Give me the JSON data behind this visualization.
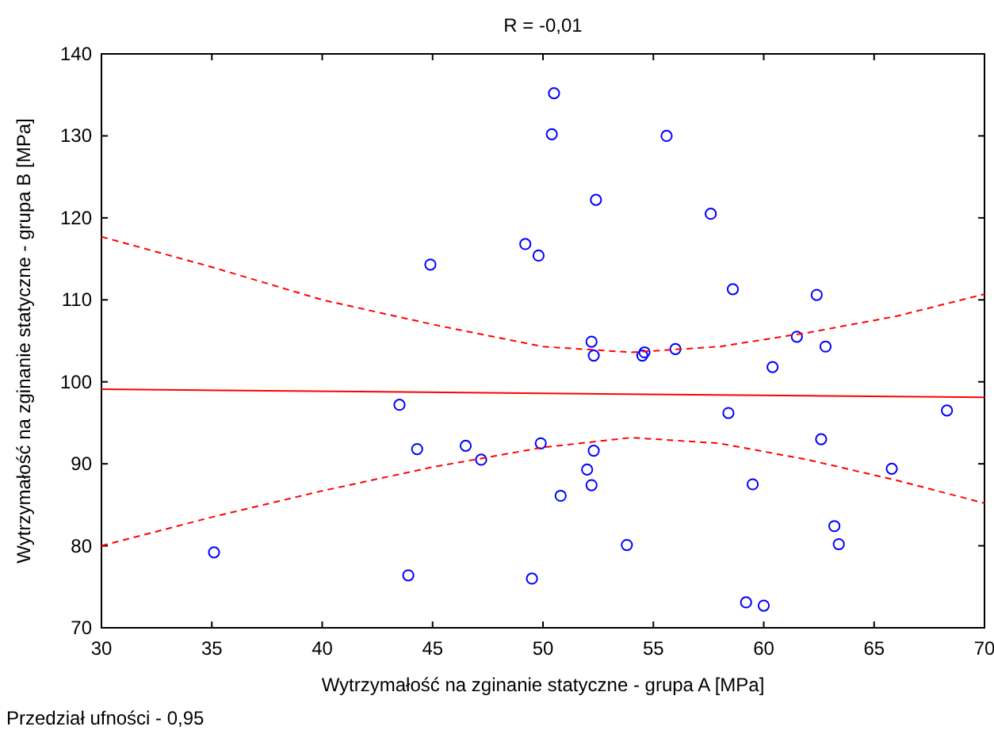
{
  "chart_data": {
    "type": "scatter",
    "title": "R = -0,01",
    "xlabel": "Wytrzymałość na zginanie statyczne - grupa A [MPa]",
    "ylabel": "Wytrzymałość na zginanie statyczne - grupa B [MPa]",
    "annotations": [
      "Przedział ufności - 0,95"
    ],
    "xlim": [
      30,
      70
    ],
    "xticks": [
      30,
      35,
      40,
      45,
      50,
      55,
      60,
      65,
      70
    ],
    "ylim": [
      70,
      140
    ],
    "yticks": [
      70,
      80,
      90,
      100,
      110,
      120,
      130,
      140
    ],
    "grid": false,
    "series": [
      {
        "color": "#0000ff",
        "marker": "circle",
        "x": [
          35.1,
          43.5,
          43.9,
          44.3,
          44.9,
          46.5,
          47.2,
          49.2,
          49.5,
          49.8,
          49.9,
          50.4,
          50.5,
          50.8,
          52.0,
          52.2,
          52.2,
          52.3,
          52.3,
          52.4,
          53.8,
          54.5,
          54.6,
          55.6,
          56.0,
          57.6,
          58.4,
          58.6,
          59.2,
          59.5,
          60.0,
          60.4,
          61.5,
          62.4,
          62.6,
          62.8,
          63.2,
          63.4,
          65.8,
          68.3
        ],
        "values": [
          79.2,
          97.2,
          76.4,
          91.8,
          114.3,
          92.2,
          90.5,
          116.8,
          76.0,
          115.4,
          92.5,
          130.2,
          135.2,
          86.1,
          89.3,
          87.4,
          104.9,
          103.2,
          91.6,
          122.2,
          80.1,
          103.2,
          103.6,
          130.0,
          104.0,
          120.5,
          96.2,
          111.3,
          73.1,
          87.5,
          72.7,
          101.8,
          105.5,
          110.6,
          93.0,
          104.3,
          82.4,
          80.2,
          89.4,
          96.5
        ]
      },
      {
        "type": "line",
        "color": "#ff0000",
        "line_style": "solid",
        "x": [
          30,
          70
        ],
        "values": [
          99.1,
          98.1
        ]
      },
      {
        "type": "line",
        "color": "#ff0000",
        "line_style": "dashed",
        "x": [
          30,
          35,
          40,
          45,
          50,
          54,
          58,
          62,
          66,
          70
        ],
        "values": [
          117.7,
          114,
          110,
          107,
          104.3,
          103.6,
          104.3,
          106,
          108,
          110.7
        ]
      },
      {
        "type": "line",
        "color": "#ff0000",
        "line_style": "dashed",
        "x": [
          30,
          35,
          40,
          45,
          50,
          54,
          58,
          62,
          66,
          70
        ],
        "values": [
          80,
          83.5,
          86.7,
          89.6,
          92,
          93.2,
          92.5,
          90.5,
          88,
          85.2
        ]
      }
    ]
  }
}
